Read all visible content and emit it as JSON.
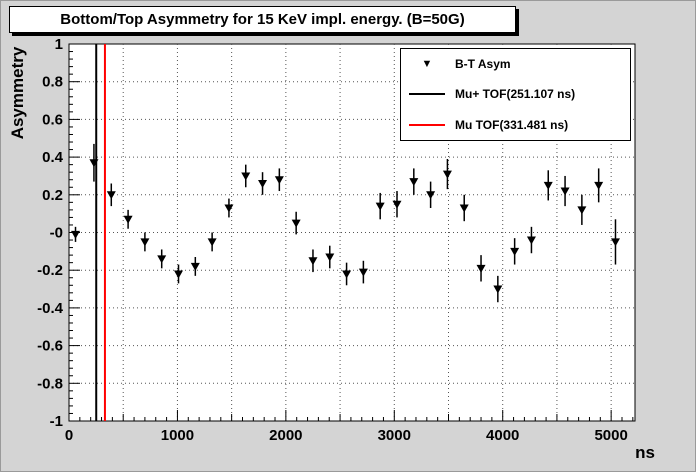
{
  "title": "Bottom/Top Asymmetry for 15 KeV impl. energy. (B=50G)",
  "colors": {
    "canvas_bg": "#d4d4d4",
    "frame_bg": "#ffffff",
    "marker": "#000000",
    "mu_plus_line": "#000000",
    "mu_line": "#ff0000",
    "grid": "#555555"
  },
  "legend": {
    "entries": [
      {
        "type": "marker",
        "color": "#000000",
        "label": "B-T Asym"
      },
      {
        "type": "line",
        "color": "#000000",
        "label": "Mu+ TOF(251.107 ns)"
      },
      {
        "type": "line",
        "color": "#ff0000",
        "label": "Mu  TOF(331.481 ns)"
      }
    ]
  },
  "chart_data": {
    "type": "scatter",
    "title": "Bottom/Top Asymmetry for 15 KeV impl. energy. (B=50G)",
    "xlabel": "ns",
    "ylabel": "Asymmetry",
    "xlim": [
      0,
      5220
    ],
    "ylim": [
      -1,
      1
    ],
    "grid": {
      "on": true,
      "x_step": 500,
      "y_step": 0.2
    },
    "x_ticks": {
      "values": [
        0,
        1000,
        2000,
        3000,
        4000,
        5000
      ],
      "labels": [
        "0",
        "1000",
        "2000",
        "3000",
        "4000",
        "5000"
      ],
      "minor_step": 100,
      "mid_step": 500
    },
    "y_ticks": {
      "values": [
        1,
        0.8,
        0.6,
        0.4,
        0.2,
        0,
        -0.2,
        -0.4,
        -0.6,
        -0.8,
        -1
      ],
      "labels": [
        "1",
        "0.8",
        "0.6",
        "0.4",
        "0.2",
        "-0",
        "-0.2",
        "-0.4",
        "-0.6",
        "-0.8",
        "-1"
      ],
      "minor_step": 0.04
    },
    "vlines": [
      {
        "x": 251.107,
        "color": "#000000",
        "name": "mu-plus-tof-line",
        "label": "Mu+ TOF(251.107 ns)"
      },
      {
        "x": 331.481,
        "color": "#ff0000",
        "name": "mu-tof-line",
        "label": "Mu  TOF(331.481 ns)"
      }
    ],
    "series": [
      {
        "name": "B-T Asym",
        "marker": "triangle-down",
        "color": "#000000",
        "points": [
          [
            60,
            -0.01,
            0.04
          ],
          [
            230,
            0.37,
            0.1
          ],
          [
            390,
            0.2,
            0.06
          ],
          [
            545,
            0.07,
            0.05
          ],
          [
            700,
            -0.05,
            0.05
          ],
          [
            855,
            -0.14,
            0.05
          ],
          [
            1010,
            -0.22,
            0.05
          ],
          [
            1165,
            -0.18,
            0.05
          ],
          [
            1320,
            -0.05,
            0.05
          ],
          [
            1475,
            0.13,
            0.05
          ],
          [
            1630,
            0.3,
            0.06
          ],
          [
            1785,
            0.26,
            0.06
          ],
          [
            1940,
            0.28,
            0.06
          ],
          [
            2095,
            0.05,
            0.06
          ],
          [
            2250,
            -0.15,
            0.06
          ],
          [
            2405,
            -0.13,
            0.06
          ],
          [
            2560,
            -0.22,
            0.06
          ],
          [
            2715,
            -0.21,
            0.06
          ],
          [
            2870,
            0.14,
            0.07
          ],
          [
            3025,
            0.15,
            0.07
          ],
          [
            3180,
            0.27,
            0.07
          ],
          [
            3335,
            0.2,
            0.07
          ],
          [
            3490,
            0.31,
            0.08
          ],
          [
            3645,
            0.13,
            0.07
          ],
          [
            3800,
            -0.19,
            0.07
          ],
          [
            3955,
            -0.3,
            0.07
          ],
          [
            4110,
            -0.1,
            0.07
          ],
          [
            4265,
            -0.04,
            0.07
          ],
          [
            4420,
            0.25,
            0.08
          ],
          [
            4575,
            0.22,
            0.08
          ],
          [
            4730,
            0.12,
            0.08
          ],
          [
            4885,
            0.25,
            0.09
          ],
          [
            5040,
            -0.05,
            0.12
          ]
        ]
      }
    ]
  }
}
